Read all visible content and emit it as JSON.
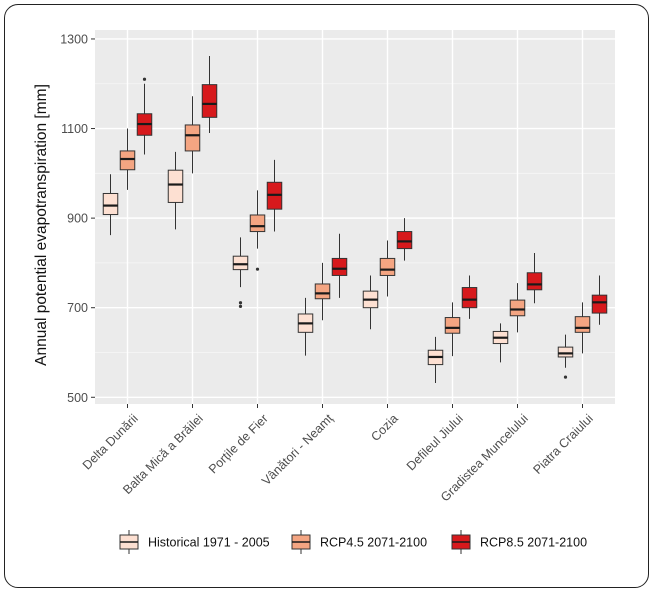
{
  "chart_data": {
    "type": "boxplot",
    "title": "",
    "xlabel": "",
    "ylabel": "Annual potential evapotranspiration [mm]",
    "ylim": [
      485,
      1320
    ],
    "yticks": [
      500,
      700,
      900,
      1100,
      1300
    ],
    "categories": [
      "Delta Dunării",
      "Balta Mică a Brăilei",
      "Porțile de Fier",
      "Vânători - Neamț",
      "Cozia",
      "Defileul Jiului",
      "Gradistea Muncelului",
      "Piatra Craiului"
    ],
    "series": [
      {
        "name": "Historical 1971 - 2005",
        "color": "#fde0d2",
        "boxes": [
          {
            "min": 862,
            "q1": 908,
            "median": 928,
            "q3": 955,
            "max": 998,
            "outliers": []
          },
          {
            "min": 875,
            "q1": 935,
            "median": 975,
            "q3": 1007,
            "max": 1048,
            "outliers": []
          },
          {
            "min": 746,
            "q1": 785,
            "median": 797,
            "q3": 815,
            "max": 857,
            "outliers": [
              711,
              703
            ]
          },
          {
            "min": 593,
            "q1": 645,
            "median": 665,
            "q3": 686,
            "max": 722,
            "outliers": []
          },
          {
            "min": 652,
            "q1": 700,
            "median": 718,
            "q3": 737,
            "max": 772,
            "outliers": []
          },
          {
            "min": 532,
            "q1": 573,
            "median": 590,
            "q3": 605,
            "max": 635,
            "outliers": []
          },
          {
            "min": 578,
            "q1": 620,
            "median": 633,
            "q3": 647,
            "max": 665,
            "outliers": []
          },
          {
            "min": 566,
            "q1": 590,
            "median": 598,
            "q3": 612,
            "max": 640,
            "outliers": [
              545
            ]
          }
        ]
      },
      {
        "name": "RCP4.5 2071-2100",
        "color": "#f4a582",
        "boxes": [
          {
            "min": 963,
            "q1": 1008,
            "median": 1032,
            "q3": 1050,
            "max": 1100,
            "outliers": []
          },
          {
            "min": 1000,
            "q1": 1050,
            "median": 1085,
            "q3": 1108,
            "max": 1172,
            "outliers": []
          },
          {
            "min": 832,
            "q1": 870,
            "median": 882,
            "q3": 907,
            "max": 962,
            "outliers": [
              786
            ]
          },
          {
            "min": 672,
            "q1": 720,
            "median": 732,
            "q3": 753,
            "max": 800,
            "outliers": []
          },
          {
            "min": 725,
            "q1": 772,
            "median": 785,
            "q3": 810,
            "max": 850,
            "outliers": []
          },
          {
            "min": 592,
            "q1": 643,
            "median": 655,
            "q3": 678,
            "max": 712,
            "outliers": []
          },
          {
            "min": 645,
            "q1": 682,
            "median": 696,
            "q3": 717,
            "max": 755,
            "outliers": []
          },
          {
            "min": 598,
            "q1": 645,
            "median": 655,
            "q3": 680,
            "max": 712,
            "outliers": []
          }
        ]
      },
      {
        "name": "RCP8.5 2071-2100",
        "color": "#d7191c",
        "boxes": [
          {
            "min": 1042,
            "q1": 1085,
            "median": 1110,
            "q3": 1133,
            "max": 1200,
            "outliers": [
              1210
            ]
          },
          {
            "min": 1090,
            "q1": 1125,
            "median": 1155,
            "q3": 1198,
            "max": 1262,
            "outliers": []
          },
          {
            "min": 870,
            "q1": 920,
            "median": 952,
            "q3": 980,
            "max": 1030,
            "outliers": []
          },
          {
            "min": 722,
            "q1": 772,
            "median": 787,
            "q3": 810,
            "max": 865,
            "outliers": []
          },
          {
            "min": 805,
            "q1": 832,
            "median": 848,
            "q3": 870,
            "max": 900,
            "outliers": []
          },
          {
            "min": 675,
            "q1": 700,
            "median": 718,
            "q3": 745,
            "max": 772,
            "outliers": []
          },
          {
            "min": 710,
            "q1": 740,
            "median": 752,
            "q3": 778,
            "max": 822,
            "outliers": []
          },
          {
            "min": 662,
            "q1": 688,
            "median": 712,
            "q3": 728,
            "max": 772,
            "outliers": []
          }
        ]
      }
    ],
    "legend_position": "bottom"
  }
}
